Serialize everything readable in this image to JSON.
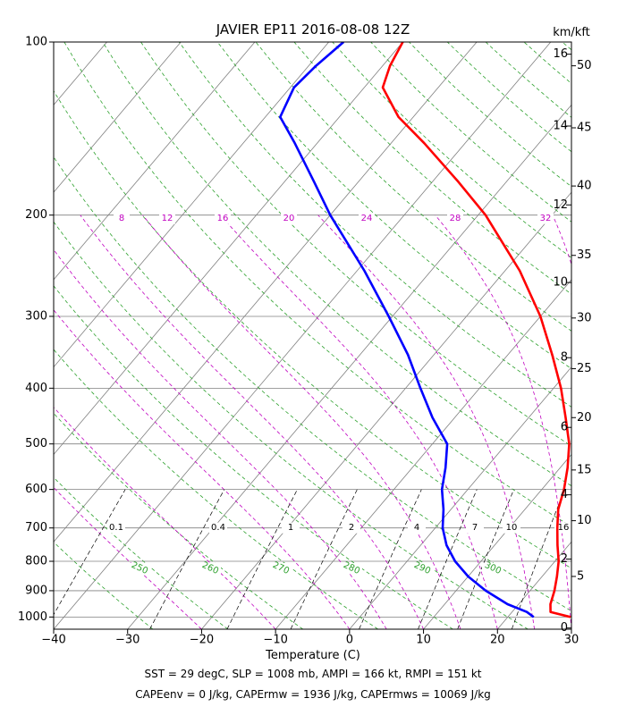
{
  "chart_data": {
    "type": "line",
    "title": "JAVIER EP11 2016-08-08 12Z",
    "xlabel": "Temperature (C)",
    "right_axis_label": "km/kft",
    "xlim": [
      -40,
      30
    ],
    "ylim": [
      1050,
      100
    ],
    "y_scale": "log",
    "skew": true,
    "x_ticks": [
      -40,
      -30,
      -20,
      -10,
      0,
      10,
      20,
      30
    ],
    "x_tick_labels": [
      "−40",
      "−30",
      "−20",
      "−10",
      "0",
      "10",
      "20",
      "30"
    ],
    "pressure_ticks": [
      100,
      200,
      300,
      400,
      500,
      600,
      700,
      800,
      900,
      1000
    ],
    "pressure_tick_labels": [
      "100",
      "200",
      "300",
      "400",
      "500",
      "600",
      "700",
      "800",
      "900",
      "1000"
    ],
    "km_ticks": [
      {
        "label": "0",
        "p": 1045
      },
      {
        "label": "2",
        "p": 793
      },
      {
        "label": "4",
        "p": 613
      },
      {
        "label": "6",
        "p": 468
      },
      {
        "label": "8",
        "p": 354
      },
      {
        "label": "10",
        "p": 262
      },
      {
        "label": "12",
        "p": 192
      },
      {
        "label": "14",
        "p": 140
      },
      {
        "label": "16",
        "p": 105
      }
    ],
    "kft_ticks": [
      {
        "label": "5",
        "p": 850
      },
      {
        "label": "10",
        "p": 680
      },
      {
        "label": "15",
        "p": 555
      },
      {
        "label": "20",
        "p": 450
      },
      {
        "label": "25",
        "p": 370
      },
      {
        "label": "30",
        "p": 302
      },
      {
        "label": "35",
        "p": 235
      },
      {
        "label": "40",
        "p": 178
      },
      {
        "label": "45",
        "p": 141
      },
      {
        "label": "50",
        "p": 110
      }
    ],
    "moist_adiabat_labels": [
      "8",
      "12",
      "16",
      "20",
      "24",
      "28",
      "32"
    ],
    "mixing_ratio_labels": [
      "0.1",
      "0.4",
      "1",
      "2",
      "4",
      "7",
      "10",
      "16"
    ],
    "dry_adiabat_labels": [
      "250",
      "260",
      "270",
      "280",
      "290",
      "300"
    ],
    "colors": {
      "temperature": "#ff0000",
      "dewpoint": "#0000ff",
      "dry_adiabat": "#2ca02c",
      "moist_adiabat": "#c000c0",
      "mixing_ratio": "#000000",
      "isotherm": "#808080",
      "isobar": "#808080"
    },
    "series": [
      {
        "points": [
          [
            1000,
            28.5
          ],
          [
            980,
            25.2
          ],
          [
            950,
            24.3
          ],
          [
            900,
            23.3
          ],
          [
            850,
            22.0
          ],
          [
            800,
            20.5
          ],
          [
            750,
            18.5
          ],
          [
            700,
            16.5
          ],
          [
            650,
            14.5
          ],
          [
            600,
            13.0
          ],
          [
            550,
            11.0
          ],
          [
            500,
            8.5
          ],
          [
            450,
            5.0
          ],
          [
            400,
            1.0
          ],
          [
            350,
            -4.0
          ],
          [
            300,
            -10.0
          ],
          [
            250,
            -18.0
          ],
          [
            200,
            -29.0
          ],
          [
            175,
            -36.5
          ],
          [
            150,
            -45.5
          ],
          [
            135,
            -52.0
          ],
          [
            120,
            -57.5
          ],
          [
            110,
            -59.0
          ],
          [
            100,
            -60.0
          ]
        ]
      },
      {
        "points": [
          [
            1000,
            23.5
          ],
          [
            980,
            22.0
          ],
          [
            950,
            18.5
          ],
          [
            900,
            14.0
          ],
          [
            850,
            10.0
          ],
          [
            800,
            6.5
          ],
          [
            750,
            3.5
          ],
          [
            700,
            1.0
          ],
          [
            650,
            -1.0
          ],
          [
            600,
            -3.5
          ],
          [
            550,
            -5.5
          ],
          [
            500,
            -8.0
          ],
          [
            450,
            -13.0
          ],
          [
            400,
            -18.0
          ],
          [
            350,
            -23.5
          ],
          [
            300,
            -30.5
          ],
          [
            250,
            -39.0
          ],
          [
            200,
            -50.0
          ],
          [
            175,
            -56.0
          ],
          [
            150,
            -63.0
          ],
          [
            135,
            -68.0
          ],
          [
            120,
            -69.5
          ],
          [
            110,
            -69.0
          ],
          [
            100,
            -68.0
          ]
        ]
      }
    ]
  },
  "captions": {
    "line1": "SST = 29 degC, SLP = 1008 mb, AMPI = 166 kt, RMPI = 151 kt",
    "line2": "CAPEenv = 0 J/kg, CAPErmw = 1936 J/kg, CAPErmws = 10069 J/kg"
  }
}
